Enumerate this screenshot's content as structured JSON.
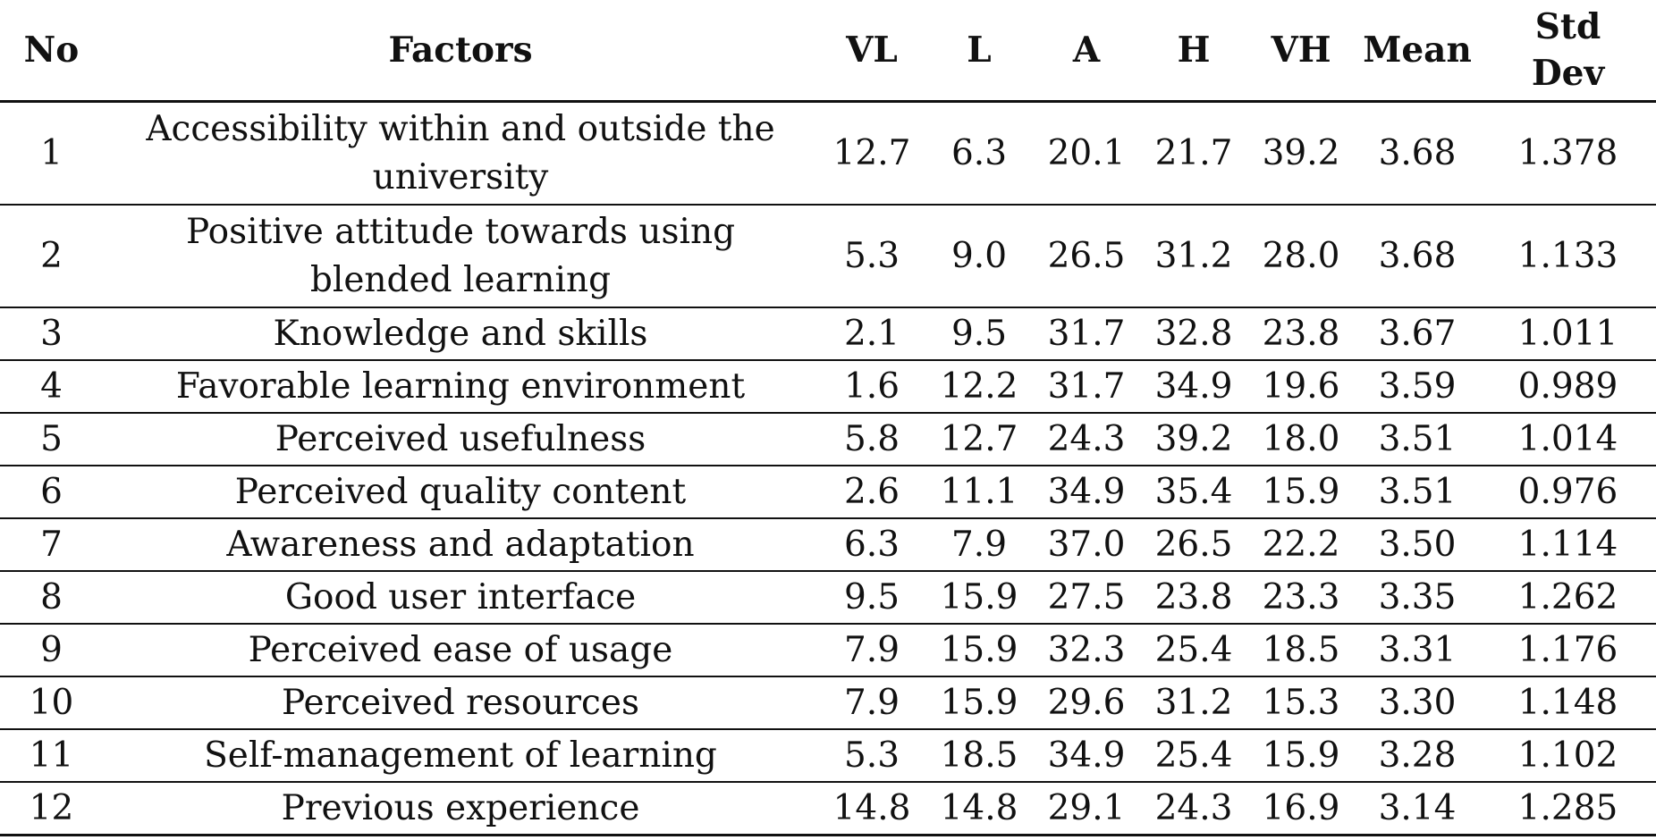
{
  "table": {
    "headers": {
      "no": "No",
      "factors": "Factors",
      "vl": "VL",
      "l": "L",
      "a": "A",
      "h": "H",
      "vh": "VH",
      "mean": "Mean",
      "std_dev_line1": "Std",
      "std_dev_line2": "Dev"
    },
    "rows": [
      {
        "no": "1",
        "factor": "Accessibility within and outside the university",
        "vl": "12.7",
        "l": "6.3",
        "a": "20.1",
        "h": "21.7",
        "vh": "39.2",
        "mean": "3.68",
        "std": "1.378"
      },
      {
        "no": "2",
        "factor": "Positive attitude towards using blended learning",
        "vl": "5.3",
        "l": "9.0",
        "a": "26.5",
        "h": "31.2",
        "vh": "28.0",
        "mean": "3.68",
        "std": "1.133"
      },
      {
        "no": "3",
        "factor": "Knowledge and skills",
        "vl": "2.1",
        "l": "9.5",
        "a": "31.7",
        "h": "32.8",
        "vh": "23.8",
        "mean": "3.67",
        "std": "1.011"
      },
      {
        "no": "4",
        "factor": "Favorable learning environment",
        "vl": "1.6",
        "l": "12.2",
        "a": "31.7",
        "h": "34.9",
        "vh": "19.6",
        "mean": "3.59",
        "std": "0.989"
      },
      {
        "no": "5",
        "factor": "Perceived usefulness",
        "vl": "5.8",
        "l": "12.7",
        "a": "24.3",
        "h": "39.2",
        "vh": "18.0",
        "mean": "3.51",
        "std": "1.014"
      },
      {
        "no": "6",
        "factor": "Perceived quality content",
        "vl": "2.6",
        "l": "11.1",
        "a": "34.9",
        "h": "35.4",
        "vh": "15.9",
        "mean": "3.51",
        "std": "0.976"
      },
      {
        "no": "7",
        "factor": "Awareness and adaptation",
        "vl": "6.3",
        "l": "7.9",
        "a": "37.0",
        "h": "26.5",
        "vh": "22.2",
        "mean": "3.50",
        "std": "1.114"
      },
      {
        "no": "8",
        "factor": "Good user interface",
        "vl": "9.5",
        "l": "15.9",
        "a": "27.5",
        "h": "23.8",
        "vh": "23.3",
        "mean": "3.35",
        "std": "1.262"
      },
      {
        "no": "9",
        "factor": "Perceived ease of usage",
        "vl": "7.9",
        "l": "15.9",
        "a": "32.3",
        "h": "25.4",
        "vh": "18.5",
        "mean": "3.31",
        "std": "1.176"
      },
      {
        "no": "10",
        "factor": "Perceived resources",
        "vl": "7.9",
        "l": "15.9",
        "a": "29.6",
        "h": "31.2",
        "vh": "15.3",
        "mean": "3.30",
        "std": "1.148"
      },
      {
        "no": "11",
        "factor": "Self-management of learning",
        "vl": "5.3",
        "l": "18.5",
        "a": "34.9",
        "h": "25.4",
        "vh": "15.9",
        "mean": "3.28",
        "std": "1.102"
      },
      {
        "no": "12",
        "factor": "Previous experience",
        "vl": "14.8",
        "l": "14.8",
        "a": "29.1",
        "h": "24.3",
        "vh": "16.9",
        "mean": "3.14",
        "std": "1.285"
      }
    ]
  }
}
